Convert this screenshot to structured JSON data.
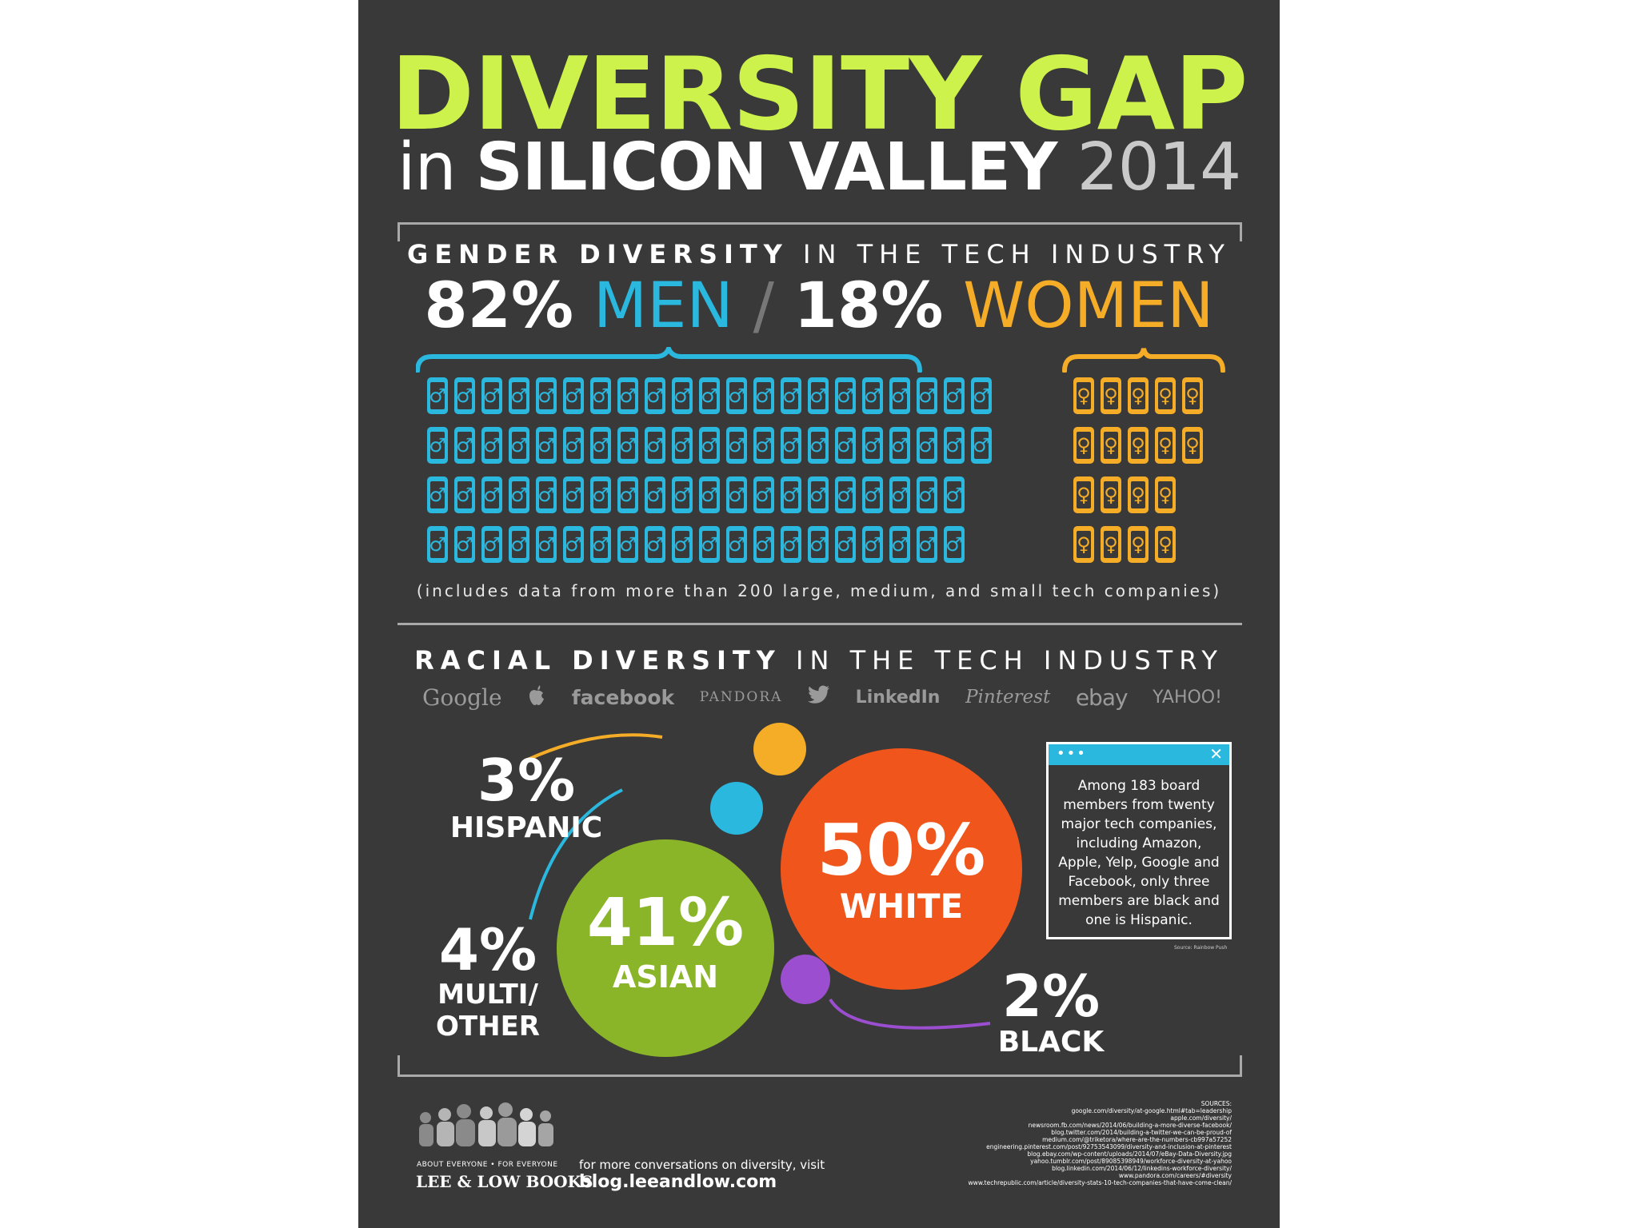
{
  "title": {
    "line1": "DIVERSITY GAP",
    "line2_in": "in",
    "line2_main": "SILICON VALLEY",
    "line2_year": "2014"
  },
  "gender": {
    "heading_bold": "GENDER DIVERSITY",
    "heading_rest": "IN THE TECH INDUSTRY",
    "men_pct": "82%",
    "men_label": "MEN",
    "slash": "/",
    "women_pct": "18%",
    "women_label": "WOMEN",
    "men_symbol": "♂",
    "women_symbol": "♀",
    "men_rows": [
      21,
      21,
      20,
      20
    ],
    "women_rows": [
      5,
      5,
      4,
      4
    ],
    "note": "(includes data from more than 200 large, medium, and small tech companies)",
    "colors": {
      "men": "#2ab8df",
      "women": "#f5ad28"
    }
  },
  "race": {
    "heading_bold": "RACIAL DIVERSITY",
    "heading_rest": "IN THE TECH INDUSTRY",
    "logos": [
      "Google",
      "",
      "facebook",
      "PANDORA",
      "",
      "LinkedIn",
      "Pinterest",
      "ebay",
      "YAHOO!"
    ],
    "logo_icons": [
      "apple-icon",
      "twitter-icon"
    ],
    "groups": [
      {
        "pct": "3%",
        "label": "HISPANIC",
        "color": "#f5ad28"
      },
      {
        "pct": "4%",
        "label_line1": "MULTI/",
        "label_line2": "OTHER",
        "color": "#2ab8df"
      },
      {
        "pct": "41%",
        "label": "ASIAN",
        "color": "#8ab528"
      },
      {
        "pct": "50%",
        "label": "WHITE",
        "color": "#f0561c"
      },
      {
        "pct": "2%",
        "label": "BLACK",
        "color": "#9b4fd0"
      }
    ],
    "popup": {
      "dots": "•••",
      "close": "✕",
      "text": "Among 183 board members from twenty major tech companies, including Amazon, Apple, Yelp, Google and Facebook, only three members are black and one is Hispanic.",
      "source": "Source: Rainbow Push"
    }
  },
  "footer": {
    "publisher_sub": "ABOUT EVERYONE  •  FOR EVERYONE",
    "publisher_name": "LEE & LOW BOOKS",
    "visit_line": "for more conversations on diversity, visit",
    "visit_url": "blog.leeandlow.com",
    "sources_title": "SOURCES:",
    "sources": [
      "google.com/diversity/at-google.html#tab=leadership",
      "apple.com/diversity/",
      "newsroom.fb.com/news/2014/06/building-a-more-diverse-facebook/",
      "blog.twitter.com/2014/building-a-twitter-we-can-be-proud-of",
      "medium.com/@triketora/where-are-the-numbers-cb997a57252",
      "engineering.pinterest.com/post/92753543099/diversity-and-inclusion-at-pinterest",
      "blog.ebay.com/wp-content/uploads/2014/07/eBay-Data-Diversity.jpg",
      "yahoo.tumblr.com/post/89085398949/workforce-diversity-at-yahoo",
      "blog.linkedin.com/2014/06/12/linkedins-workforce-diversity/",
      "www.pandora.com/careers/#diversity",
      "www.techrepublic.com/article/diversity-stats-10-tech-companies-that-have-come-clean/"
    ]
  },
  "colors": {
    "background": "#3a3939",
    "title_green": "#cdf24b",
    "frame": "#a9a9a9"
  }
}
